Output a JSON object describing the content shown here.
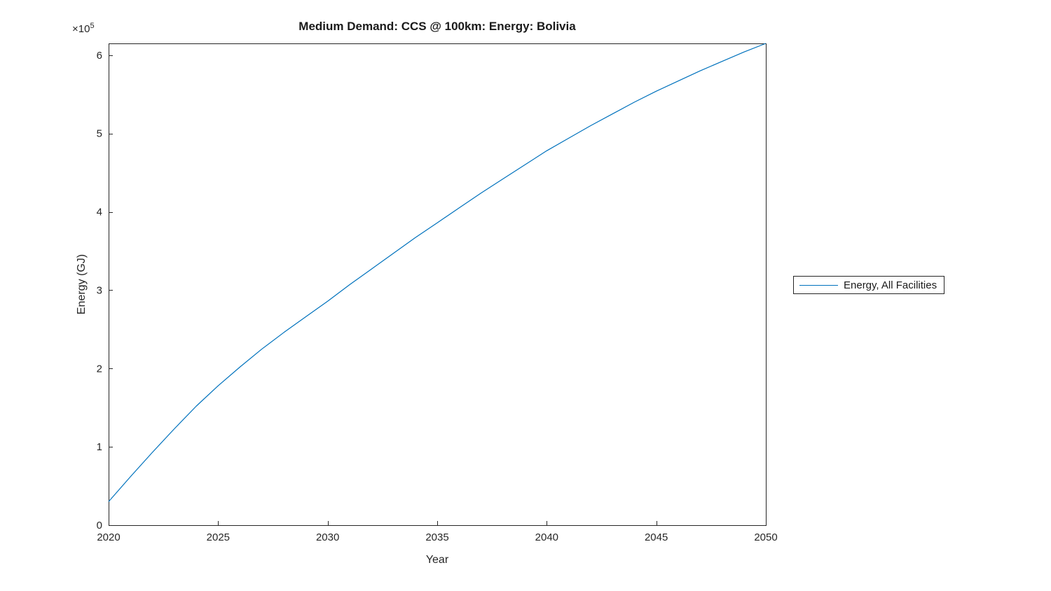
{
  "chart_data": {
    "type": "line",
    "title": "Medium Demand: CCS @ 100km: Energy: Bolivia",
    "xlabel": "Year",
    "ylabel": "Energy (GJ)",
    "y_multiplier": {
      "base": "×10",
      "exp": "5"
    },
    "x": [
      2020,
      2021,
      2022,
      2023,
      2024,
      2025,
      2026,
      2027,
      2028,
      2029,
      2030,
      2031,
      2032,
      2033,
      2034,
      2035,
      2036,
      2037,
      2038,
      2039,
      2040,
      2041,
      2042,
      2043,
      2044,
      2045,
      2046,
      2047,
      2048,
      2049,
      2050
    ],
    "series": [
      {
        "name": "Energy, All Facilities",
        "color": "#0072BD",
        "values": [
          30000,
          62000,
          93000,
          123000,
          152000,
          178000,
          202000,
          225000,
          246000,
          266000,
          286000,
          307000,
          327000,
          347000,
          367000,
          386000,
          405000,
          424000,
          442000,
          460000,
          478000,
          494000,
          510000,
          525000,
          540000,
          554000,
          567000,
          580000,
          592000,
          604000,
          615000
        ]
      }
    ],
    "xlim": [
      2020,
      2050
    ],
    "ylim": [
      0,
      615000
    ],
    "xticks": [
      2020,
      2025,
      2030,
      2035,
      2040,
      2045,
      2050
    ],
    "yticks": [
      0,
      100000,
      200000,
      300000,
      400000,
      500000,
      600000
    ],
    "ytick_labels": [
      "0",
      "1",
      "2",
      "3",
      "4",
      "5",
      "6"
    ],
    "grid": false,
    "legend_position": "right-outside",
    "axis_color": "#262626",
    "background_color": "#ffffff"
  }
}
